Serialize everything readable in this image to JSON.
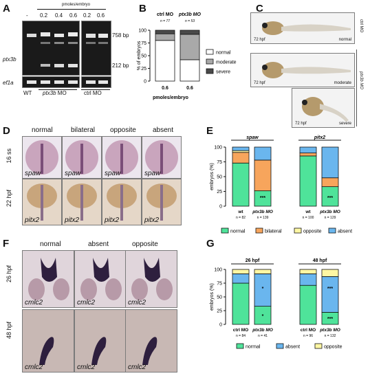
{
  "panels": {
    "A": "A",
    "B": "B",
    "C": "C",
    "D": "D",
    "E": "E",
    "F": "F",
    "G": "G"
  },
  "panelA": {
    "top_caption": "pmoles/embryo",
    "dose_labels": [
      "-",
      "0.2",
      "0.4",
      "0.6",
      "0.2",
      "0.6"
    ],
    "gene_rows": [
      "ptx3b",
      "ef1a"
    ],
    "band_sizes": [
      "758 bp",
      "212 bp"
    ],
    "groups": [
      "WT",
      "ptx3b MO",
      "ctrl MO"
    ]
  },
  "panelB": {
    "legend": [
      "normal",
      "moderate",
      "severe"
    ],
    "colors": {
      "normal": "#ffffff",
      "moderate": "#a9a9a9",
      "severe": "#4a4a4a"
    }
  },
  "panelC": {
    "side_labels": [
      "ctrl MO",
      "ptx3b MO"
    ],
    "stage": [
      "72 hpf",
      "72 hpf",
      "72 hpf"
    ],
    "phenotypes": [
      "normal",
      "moderate",
      "severe"
    ]
  },
  "panelD": {
    "columns": [
      "normal",
      "bilateral",
      "opposite",
      "absent"
    ],
    "rows": [
      "16 ss",
      "22 hpf"
    ],
    "probes": [
      "spaw",
      "pitx2"
    ]
  },
  "panelE": {
    "legend": [
      "normal",
      "bilateral",
      "opposite",
      "absent"
    ],
    "colors": {
      "normal": "#4fe39a",
      "bilateral": "#f7a55c",
      "opposite": "#fff7a3",
      "absent": "#6ab6ee"
    }
  },
  "panelF": {
    "columns": [
      "normal",
      "absent",
      "opposite"
    ],
    "rows": [
      "26 hpf",
      "48 hpf"
    ],
    "probe": "cmlc2"
  },
  "panelG": {
    "legend": [
      "normal",
      "absent",
      "opposite"
    ],
    "colors": {
      "normal": "#4fe39a",
      "absent": "#6ab6ee",
      "opposite": "#fff7a3"
    }
  },
  "chart_data": [
    {
      "type": "bar",
      "stacked": true,
      "panel": "B",
      "ylabel": "% of embryos",
      "xlabel": "pmoles/embryo",
      "ylim": [
        0,
        100
      ],
      "yticks": [
        0,
        25,
        50,
        75,
        100
      ],
      "categories": [
        "0.6",
        "0.6"
      ],
      "groups": [
        "ctrl MO",
        "ptx3b MO"
      ],
      "group_counts": [
        "n = 77",
        "n = 53"
      ],
      "series": [
        {
          "name": "normal",
          "values": [
            80,
            42
          ]
        },
        {
          "name": "moderate",
          "values": [
            13,
            50
          ]
        },
        {
          "name": "severe",
          "values": [
            7,
            8
          ]
        }
      ],
      "legend_position": "right"
    },
    {
      "type": "bar",
      "stacked": true,
      "panel": "E",
      "ylabel": "embryos (%)",
      "ylim": [
        0,
        100
      ],
      "yticks": [
        0,
        25,
        50,
        75,
        100
      ],
      "groups": [
        "spaw",
        "pitx2"
      ],
      "categories": [
        "wt",
        "ptx3b MO",
        "wt",
        "ptx3b MO"
      ],
      "counts": [
        "n = 82",
        "n = 139",
        "n = 100",
        "n = 129"
      ],
      "series": [
        {
          "name": "normal",
          "values": [
            73,
            26,
            85,
            33
          ]
        },
        {
          "name": "bilateral",
          "values": [
            18,
            52,
            5,
            15
          ]
        },
        {
          "name": "opposite",
          "values": [
            3,
            0,
            0,
            0
          ]
        },
        {
          "name": "absent",
          "values": [
            6,
            22,
            10,
            52
          ]
        }
      ],
      "annotations": [
        "***",
        "***"
      ],
      "legend_position": "bottom"
    },
    {
      "type": "bar",
      "stacked": true,
      "panel": "G",
      "ylabel": "embryos (%)",
      "ylim": [
        0,
        100
      ],
      "yticks": [
        0,
        25,
        50,
        75,
        100
      ],
      "groups": [
        "26 hpf",
        "48 hpf"
      ],
      "categories": [
        "ctrl MO",
        "ptx3b MO",
        "ctrl MO",
        "ptx3b MO"
      ],
      "counts": [
        "n = 84",
        "n = 41",
        "n = 96",
        "n = 132"
      ],
      "series": [
        {
          "name": "normal",
          "values": [
            75,
            33,
            71,
            22
          ]
        },
        {
          "name": "absent",
          "values": [
            17,
            59,
            21,
            65
          ]
        },
        {
          "name": "opposite",
          "values": [
            8,
            8,
            8,
            13
          ]
        }
      ],
      "annotations": [
        "*",
        "*",
        "***",
        "***"
      ],
      "legend_position": "bottom"
    }
  ]
}
